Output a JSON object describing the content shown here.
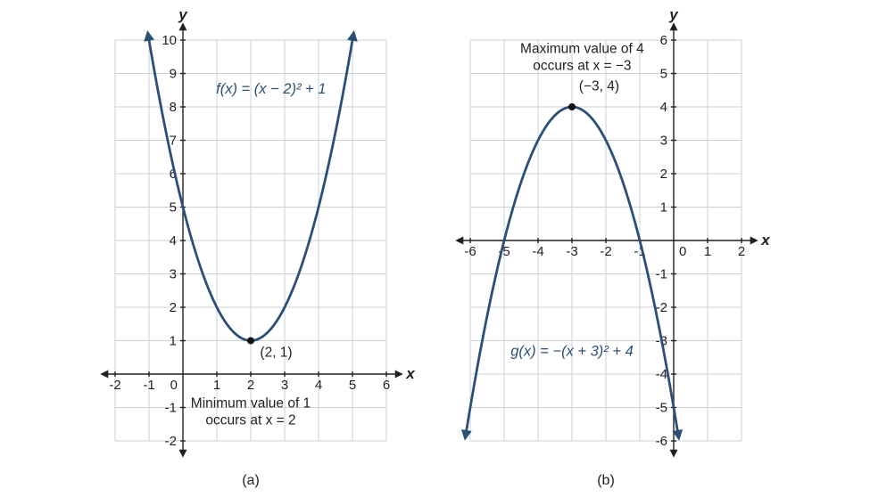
{
  "figure": {
    "background": "#ffffff"
  },
  "colors": {
    "curve": "#2c4f76",
    "axis": "#231f20",
    "grid": "#cbd0d8",
    "text": "#231f20",
    "point": "#111111"
  },
  "chart_data": [
    {
      "id": "a",
      "type": "line",
      "caption": "(a)",
      "function": {
        "label": "f(x) = (x − 2)² + 1",
        "form": "a(x − h)² + k",
        "a": 1,
        "h": 2,
        "k": 1
      },
      "vertex": {
        "x": 2,
        "y": 1,
        "label": "(2, 1)",
        "label_pos": {
          "x": 2.75,
          "y": 0.52
        }
      },
      "annotation": {
        "lines": [
          "Minimum value of 1",
          "occurs at x = 2"
        ],
        "pos": {
          "x": 2.0,
          "y": -1.0
        }
      },
      "equation_pos": {
        "x": 2.6,
        "y": 8.4
      },
      "xlabel": "x",
      "ylabel": "y",
      "xlim": [
        -2,
        6
      ],
      "ylim": [
        -2,
        10
      ],
      "xticks": [
        -2,
        -1,
        0,
        1,
        2,
        3,
        4,
        5,
        6
      ],
      "yticks": [
        -2,
        -1,
        1,
        2,
        3,
        4,
        5,
        6,
        7,
        8,
        9,
        10
      ],
      "zero_label_side": "left",
      "curve_y_end": 10.2,
      "grid": true,
      "points": [
        [
          -1,
          10
        ],
        [
          0,
          5
        ],
        [
          1,
          2
        ],
        [
          2,
          1
        ],
        [
          3,
          2
        ],
        [
          4,
          5
        ],
        [
          5,
          10
        ]
      ]
    },
    {
      "id": "b",
      "type": "line",
      "caption": "(b)",
      "function": {
        "label": "g(x) = −(x + 3)² + 4",
        "form": "a(x − h)² + k",
        "a": -1,
        "h": -3,
        "k": 4
      },
      "vertex": {
        "x": -3,
        "y": 4,
        "label": "(−3, 4)",
        "label_pos": {
          "x": -2.2,
          "y": 4.5
        }
      },
      "annotation": {
        "lines": [
          "Maximum value of 4",
          "occurs at x = −3"
        ],
        "pos": {
          "x": -2.7,
          "y": 5.62
        }
      },
      "equation_pos": {
        "x": -3.0,
        "y": -3.45
      },
      "xlabel": "x",
      "ylabel": "y",
      "xlim": [
        -6,
        2
      ],
      "ylim": [
        -6,
        6
      ],
      "xticks": [
        -6,
        -5,
        -4,
        -3,
        -2,
        -1,
        0,
        1,
        2
      ],
      "yticks": [
        -6,
        -5,
        -4,
        -3,
        -2,
        -1,
        1,
        2,
        3,
        4,
        5,
        6
      ],
      "zero_label_side": "right",
      "curve_y_end": -5.9,
      "grid": true,
      "points": [
        [
          -6,
          -5
        ],
        [
          -5,
          0
        ],
        [
          -4,
          3
        ],
        [
          -3,
          4
        ],
        [
          -2,
          3
        ],
        [
          -1,
          0
        ],
        [
          0,
          -5
        ]
      ]
    }
  ]
}
